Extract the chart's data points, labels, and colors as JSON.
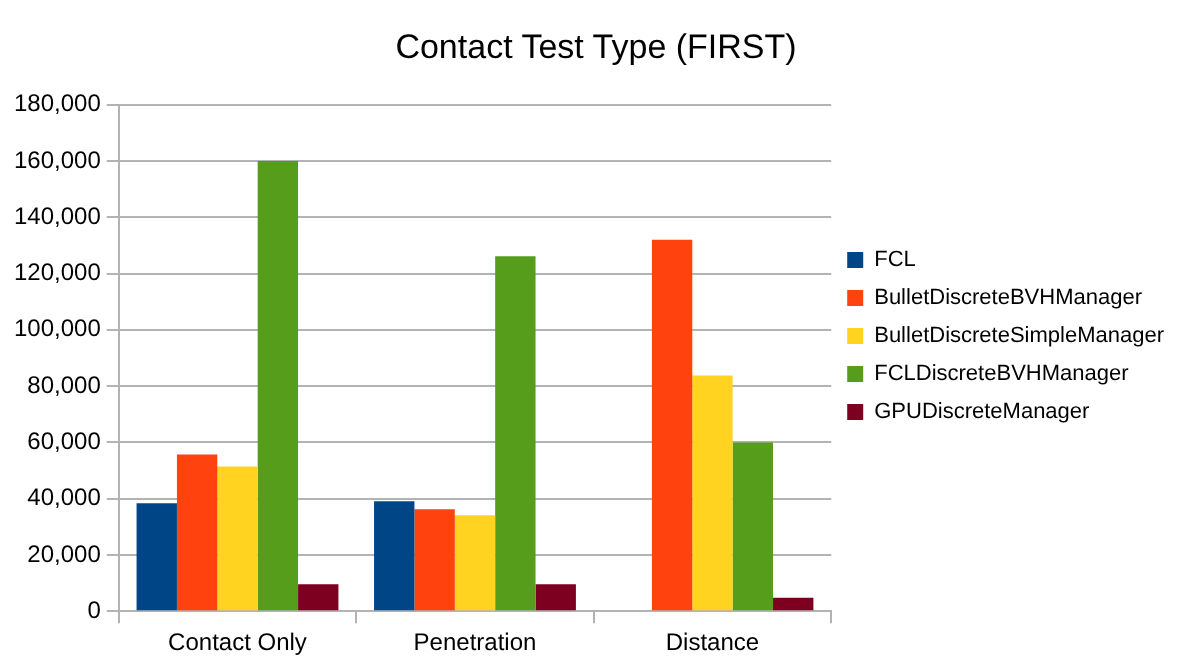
{
  "chart_data": {
    "type": "bar",
    "title": "Contact Test Type (FIRST)",
    "categories": [
      "Contact Only",
      "Penetration",
      "Distance"
    ],
    "series": [
      {
        "name": "FCL",
        "color": "#004586",
        "values": [
          38400,
          39100,
          null
        ]
      },
      {
        "name": "BulletDiscreteBVHManager",
        "color": "#ff420e",
        "values": [
          55700,
          36200,
          132000
        ]
      },
      {
        "name": "BulletDiscreteSimpleManager",
        "color": "#ffd320",
        "values": [
          51400,
          34100,
          83800
        ]
      },
      {
        "name": "FCLDiscreteBVHManager",
        "color": "#579d1c",
        "values": [
          160000,
          126200,
          60000
        ]
      },
      {
        "name": "GPUDiscreteManager",
        "color": "#7e0021",
        "values": [
          9600,
          9600,
          4800
        ]
      }
    ],
    "ylim": [
      0,
      180000
    ],
    "yticks": [
      0,
      {
        "value": 20000,
        "label": "20,000"
      },
      {
        "value": 40000,
        "label": "40,000"
      },
      {
        "value": 60000,
        "label": "60,000"
      },
      {
        "value": 80000,
        "label": "80,000"
      },
      {
        "value": 100000,
        "label": "100,000"
      },
      {
        "value": 120000,
        "label": "120,000"
      },
      {
        "value": 140000,
        "label": "140,000"
      },
      {
        "value": 160000,
        "label": "160,000"
      },
      {
        "value": 180000,
        "label": "180,000"
      }
    ],
    "grid": "y",
    "legend": "right"
  }
}
